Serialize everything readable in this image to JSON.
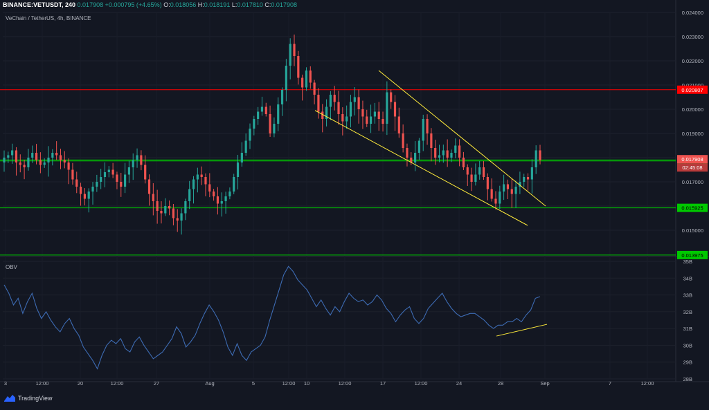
{
  "header": {
    "symbol": "BINANCE:VETUSDT, 240",
    "price": "0.017908",
    "change": "+0.000795 (+4.65%)",
    "o_label": "O:",
    "o": "0.018056",
    "h_label": "H:",
    "h": "0.018191",
    "l_label": "L:",
    "l": "0.017810",
    "c_label": "C:",
    "c": "0.017908"
  },
  "legend": {
    "main": "VeChain / TetherUS, 4h, BINANCE",
    "obv": "OBV"
  },
  "brand": {
    "name": "TradingView"
  },
  "colors": {
    "background": "#131722",
    "up": "#26a69a",
    "down": "#ef5350",
    "resistance": "#ff0000",
    "support": "#00c800",
    "trendline": "#ffeb3b",
    "obv_line": "#3d6bb3"
  },
  "chart_data": [
    {
      "type": "candlestick",
      "title": "VeChain / TetherUS, 4h, BINANCE",
      "ylim": [
        0.014,
        0.024
      ],
      "y_ticks": [
        "0.024000",
        "0.023000",
        "0.022000",
        "0.021000",
        "0.020000",
        "0.019000",
        "0.018000",
        "0.017000",
        "0.016000",
        "0.015000"
      ],
      "x_ticks": [
        "3",
        "12:00",
        "20",
        "12:00",
        "27",
        "Aug",
        "5",
        "12:00",
        "10",
        "12:00",
        "17",
        "12:00",
        "24",
        "28",
        "Sep",
        "7",
        "12:00"
      ],
      "approx_close_path": [
        0.018,
        0.0181,
        0.0183,
        0.0178,
        0.0177,
        0.0176,
        0.018,
        0.0182,
        0.0179,
        0.0177,
        0.0178,
        0.018,
        0.0182,
        0.0181,
        0.0179,
        0.0178,
        0.0175,
        0.0171,
        0.0168,
        0.0165,
        0.0163,
        0.0166,
        0.0168,
        0.017,
        0.0172,
        0.0174,
        0.0175,
        0.0173,
        0.017,
        0.0168,
        0.0173,
        0.0176,
        0.0179,
        0.0181,
        0.0177,
        0.0171,
        0.0165,
        0.0162,
        0.0158,
        0.0157,
        0.016,
        0.0159,
        0.0155,
        0.0154,
        0.0157,
        0.0162,
        0.0167,
        0.0171,
        0.0173,
        0.0172,
        0.0169,
        0.0166,
        0.0164,
        0.0161,
        0.0162,
        0.0164,
        0.0166,
        0.0172,
        0.0178,
        0.0182,
        0.0187,
        0.0192,
        0.0196,
        0.0199,
        0.0201,
        0.0198,
        0.019,
        0.0194,
        0.0202,
        0.0208,
        0.0218,
        0.0227,
        0.0222,
        0.0213,
        0.0209,
        0.0216,
        0.0211,
        0.0206,
        0.0199,
        0.0196,
        0.0201,
        0.0206,
        0.0203,
        0.0198,
        0.0195,
        0.0197,
        0.0203,
        0.0205,
        0.02,
        0.0197,
        0.0194,
        0.0197,
        0.0199,
        0.0196,
        0.0194,
        0.0207,
        0.0203,
        0.0197,
        0.019,
        0.0184,
        0.018,
        0.0178,
        0.0182,
        0.0187,
        0.0196,
        0.019,
        0.0184,
        0.018,
        0.0181,
        0.0183,
        0.018,
        0.0182,
        0.0185,
        0.018,
        0.0176,
        0.0173,
        0.017,
        0.0173,
        0.0176,
        0.0172,
        0.0167,
        0.0163,
        0.0161,
        0.0166,
        0.0169,
        0.0167,
        0.0165,
        0.0168,
        0.017,
        0.0172,
        0.0171,
        0.0176,
        0.0183,
        0.0179
      ],
      "last_price": "0.017908",
      "countdown": "02:45:08",
      "horizontal_levels": [
        {
          "price": 0.020807,
          "label": "0.020807",
          "role": "resistance"
        },
        {
          "price": 0.017864,
          "label": "0.017864",
          "role": "support"
        },
        {
          "price": 0.015925,
          "label": "0.015925",
          "role": "support"
        },
        {
          "price": 0.013975,
          "label": "0.013975",
          "role": "support"
        }
      ],
      "last_price_line": 0.017908
    },
    {
      "type": "line",
      "title": "OBV",
      "ylim": [
        28,
        35
      ],
      "y_ticks": [
        "35B",
        "34B",
        "33B",
        "32B",
        "31B",
        "30B",
        "29B",
        "28B"
      ],
      "values": [
        33.6,
        33.1,
        32.4,
        32.8,
        31.9,
        32.6,
        33.1,
        32.2,
        31.6,
        32.0,
        31.5,
        31.1,
        30.8,
        31.3,
        31.6,
        31.0,
        30.6,
        29.9,
        29.5,
        29.1,
        28.6,
        29.4,
        30.0,
        30.3,
        30.1,
        30.4,
        29.8,
        29.6,
        30.2,
        30.5,
        30.0,
        29.6,
        29.2,
        29.4,
        29.6,
        30.0,
        30.4,
        31.1,
        30.7,
        29.9,
        30.2,
        30.6,
        31.3,
        31.9,
        32.4,
        32.0,
        31.5,
        30.8,
        29.9,
        29.4,
        30.1,
        29.4,
        29.1,
        29.6,
        29.8,
        30.0,
        30.5,
        31.5,
        32.4,
        33.3,
        34.2,
        34.7,
        34.4,
        33.9,
        33.6,
        33.3,
        32.8,
        32.3,
        32.7,
        32.2,
        31.8,
        32.3,
        32.0,
        32.6,
        33.1,
        32.8,
        32.6,
        32.7,
        32.4,
        32.6,
        33.0,
        32.7,
        32.2,
        31.9,
        31.4,
        31.8,
        32.1,
        32.3,
        31.6,
        31.3,
        31.6,
        32.2,
        32.5,
        32.8,
        33.1,
        32.6,
        32.2,
        31.9,
        31.7,
        31.8,
        31.9,
        31.9,
        31.7,
        31.5,
        31.2,
        31.0,
        31.2,
        31.2,
        31.4,
        31.4,
        31.6,
        31.4,
        31.8,
        32.1,
        32.8,
        32.9
      ]
    }
  ]
}
